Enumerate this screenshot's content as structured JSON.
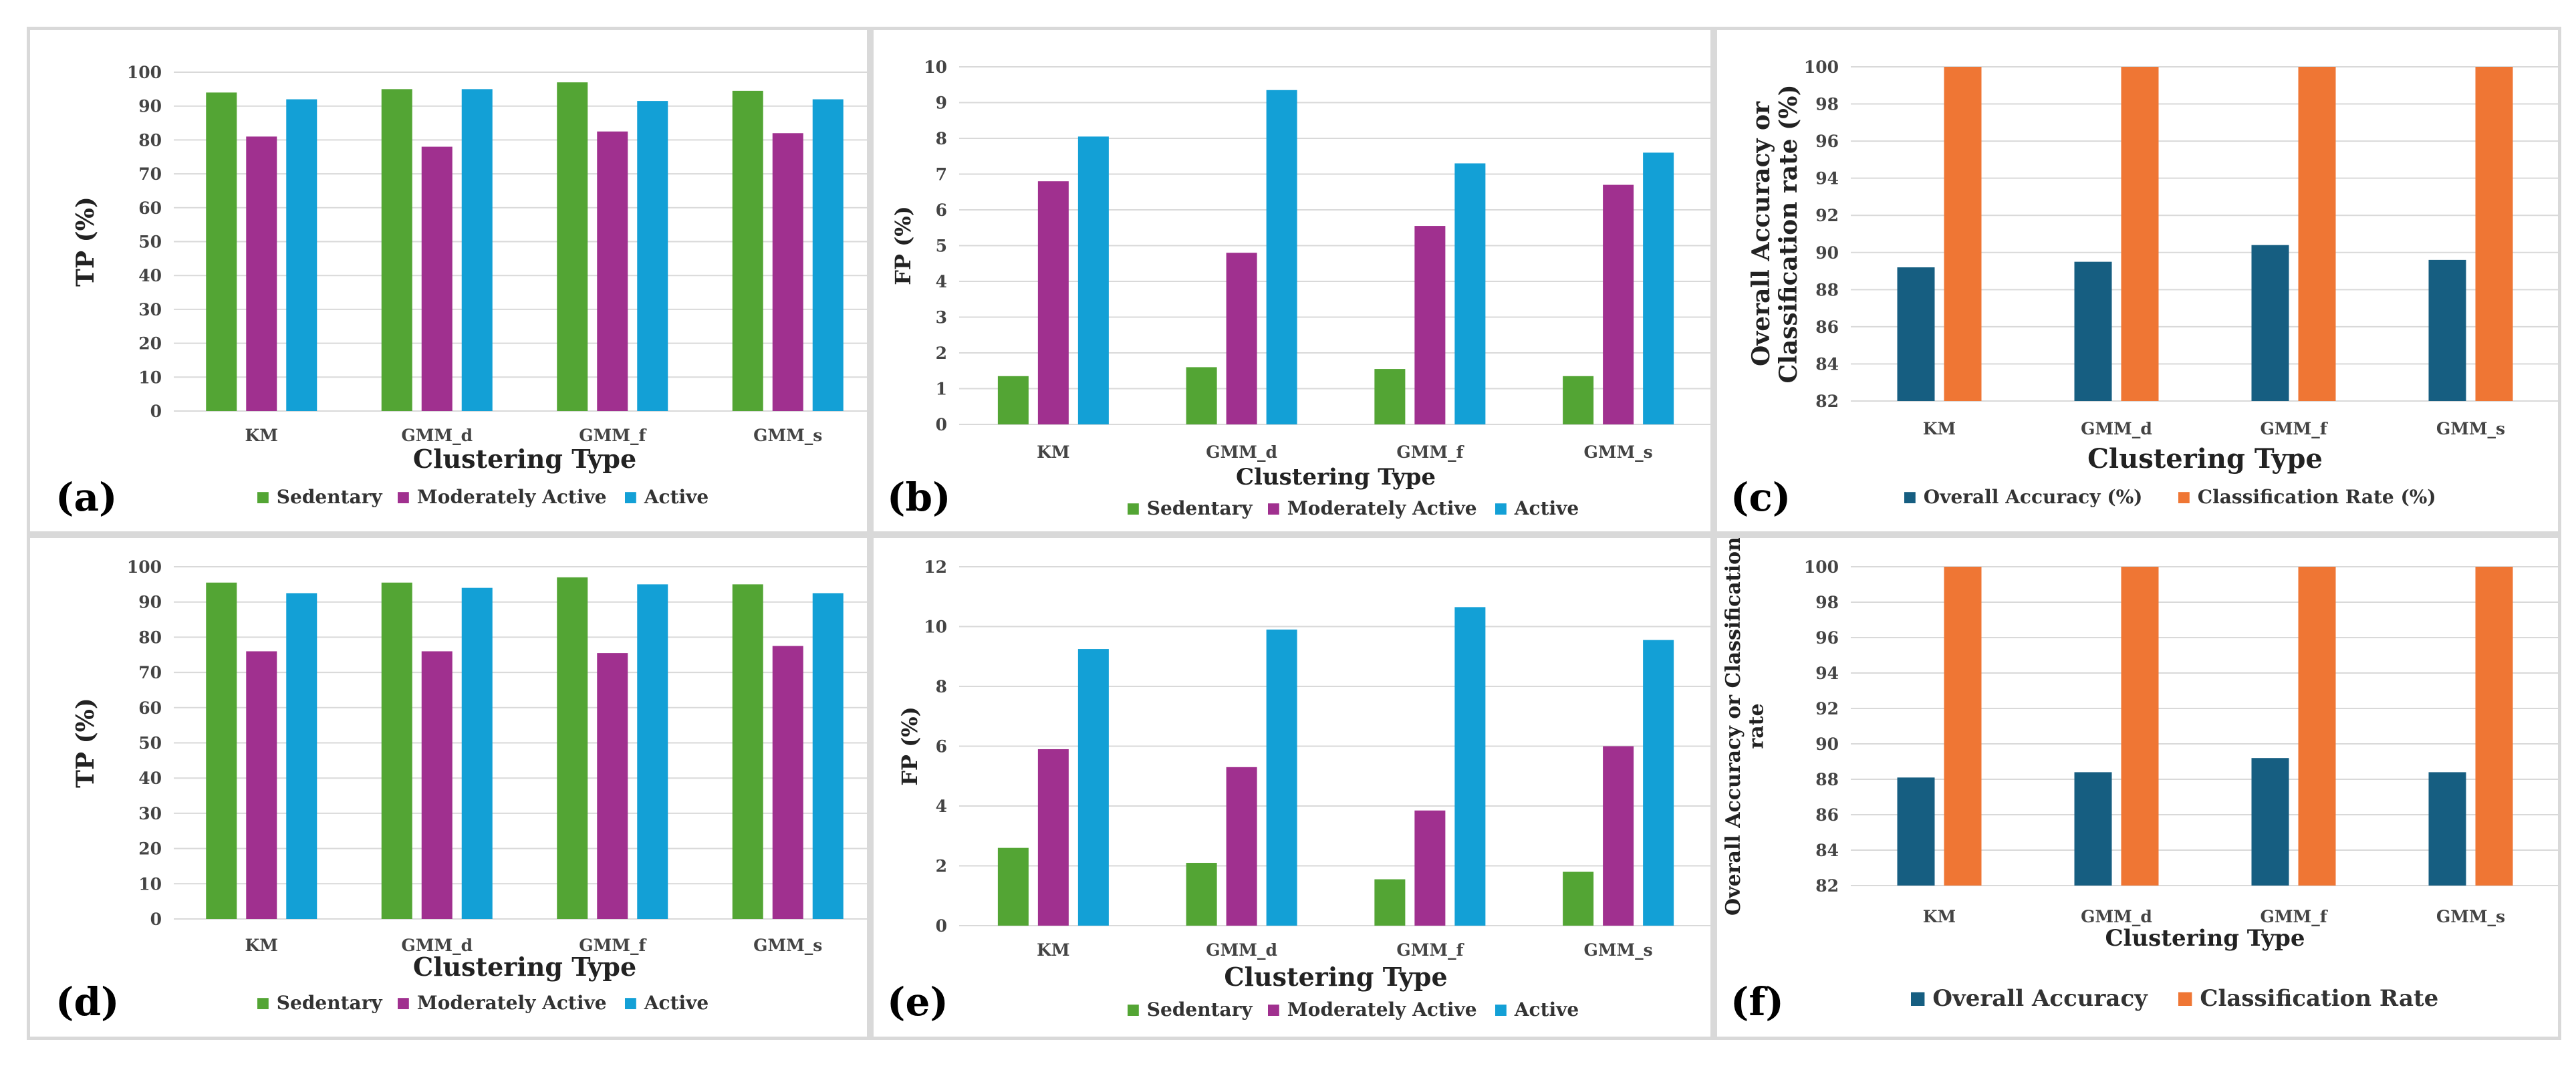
{
  "colors": {
    "sedentary": "#53a534",
    "moderately_active": "#a0308f",
    "active": "#13a0d6",
    "overall_accuracy": "#165e81",
    "classification_rate": "#ef7634",
    "grid": "#d9d9d9"
  },
  "chart_data": [
    {
      "panel": "(a)",
      "type": "bar",
      "categories": [
        "KM",
        "GMM_d",
        "GMM_f",
        "GMM_s"
      ],
      "series": [
        {
          "name": "Sedentary",
          "color": "sedentary",
          "values": [
            94,
            95,
            97,
            94.5
          ]
        },
        {
          "name": "Moderately Active",
          "color": "moderately_active",
          "values": [
            81,
            78,
            82.5,
            82
          ]
        },
        {
          "name": "Active",
          "color": "active",
          "values": [
            92,
            95,
            91.5,
            92
          ]
        }
      ],
      "xlabel": "Clustering Type",
      "ylabel": "TP (%)",
      "ylim": [
        0,
        100
      ],
      "yticks": [
        0,
        10,
        20,
        30,
        40,
        50,
        60,
        70,
        80,
        90,
        100
      ],
      "legend": "bottom"
    },
    {
      "panel": "(b)",
      "type": "bar",
      "categories": [
        "KM",
        "GMM_d",
        "GMM_f",
        "GMM_s"
      ],
      "series": [
        {
          "name": "Sedentary",
          "color": "sedentary",
          "values": [
            1.35,
            1.6,
            1.55,
            1.35
          ]
        },
        {
          "name": "Moderately Active",
          "color": "moderately_active",
          "values": [
            6.8,
            4.8,
            5.55,
            6.7
          ]
        },
        {
          "name": "Active",
          "color": "active",
          "values": [
            8.05,
            9.35,
            7.3,
            7.6
          ]
        }
      ],
      "xlabel": "Clustering Type",
      "ylabel": "FP (%)",
      "ylim": [
        0,
        10
      ],
      "yticks": [
        0,
        1,
        2,
        3,
        4,
        5,
        6,
        7,
        8,
        9,
        10
      ],
      "legend": "bottom"
    },
    {
      "panel": "(c)",
      "type": "bar",
      "categories": [
        "KM",
        "GMM_d",
        "GMM_f",
        "GMM_s"
      ],
      "series": [
        {
          "name": "Overall Accuracy (%)",
          "color": "overall_accuracy",
          "values": [
            89.2,
            89.5,
            90.4,
            89.6
          ]
        },
        {
          "name": "Classification Rate (%)",
          "color": "classification_rate",
          "values": [
            100,
            100,
            100,
            100
          ]
        }
      ],
      "xlabel": "Clustering Type",
      "ylabel": [
        "Overall Accuracy or",
        "Classification rate (%)"
      ],
      "ylim": [
        82,
        100
      ],
      "yticks": [
        82,
        84,
        86,
        88,
        90,
        92,
        94,
        96,
        98,
        100
      ],
      "legend": "bottom"
    },
    {
      "panel": "(d)",
      "type": "bar",
      "categories": [
        "KM",
        "GMM_d",
        "GMM_f",
        "GMM_s"
      ],
      "series": [
        {
          "name": "Sedentary",
          "color": "sedentary",
          "values": [
            95.5,
            95.5,
            97,
            95
          ]
        },
        {
          "name": "Moderately Active",
          "color": "moderately_active",
          "values": [
            76,
            76,
            75.5,
            77.5
          ]
        },
        {
          "name": "Active",
          "color": "active",
          "values": [
            92.5,
            94,
            95,
            92.5
          ]
        }
      ],
      "xlabel": "Clustering Type",
      "ylabel": "TP (%)",
      "ylim": [
        0,
        100
      ],
      "yticks": [
        0,
        10,
        20,
        30,
        40,
        50,
        60,
        70,
        80,
        90,
        100
      ],
      "legend": "bottom"
    },
    {
      "panel": "(e)",
      "type": "bar",
      "categories": [
        "KM",
        "GMM_d",
        "GMM_f",
        "GMM_s"
      ],
      "series": [
        {
          "name": "Sedentary",
          "color": "sedentary",
          "values": [
            2.6,
            2.1,
            1.55,
            1.8
          ]
        },
        {
          "name": "Moderately Active",
          "color": "moderately_active",
          "values": [
            5.9,
            5.3,
            3.85,
            6.0
          ]
        },
        {
          "name": "Active",
          "color": "active",
          "values": [
            9.25,
            9.9,
            10.65,
            9.55
          ]
        }
      ],
      "xlabel": "Clustering Type",
      "ylabel": "FP (%)",
      "ylim": [
        0,
        12
      ],
      "yticks": [
        0,
        2,
        4,
        6,
        8,
        10,
        12
      ],
      "legend": "bottom"
    },
    {
      "panel": "(f)",
      "type": "bar",
      "categories": [
        "KM",
        "GMM_d",
        "GMM_f",
        "GMM_s"
      ],
      "series": [
        {
          "name": "Overall Accuracy",
          "color": "overall_accuracy",
          "values": [
            88.1,
            88.4,
            89.2,
            88.4
          ]
        },
        {
          "name": "Classification Rate",
          "color": "classification_rate",
          "values": [
            100,
            100,
            100,
            100
          ]
        }
      ],
      "xlabel": "Clustering Type",
      "ylabel": [
        "Overall Accuracy or Classification",
        "rate"
      ],
      "ylim": [
        82,
        100
      ],
      "yticks": [
        82,
        84,
        86,
        88,
        90,
        92,
        94,
        96,
        98,
        100
      ],
      "legend": "bottom"
    }
  ]
}
